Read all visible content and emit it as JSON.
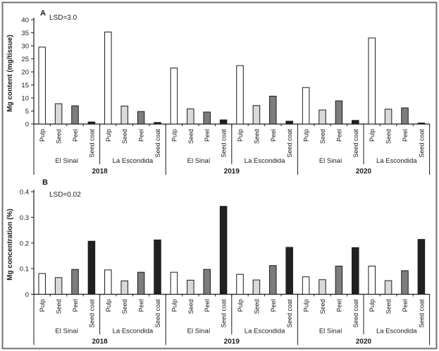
{
  "figure": {
    "background": "#ffffff",
    "frame_color": "#707070"
  },
  "chart_data": [
    {
      "id": "panel_a",
      "type": "bar",
      "panel_label": "A",
      "annotation": "LSD=3.0",
      "ylabel": "Mg content (mg/tissue)",
      "ylim": [
        0,
        40
      ],
      "yticks": [
        0,
        5,
        10,
        15,
        20,
        25,
        30,
        35,
        40
      ],
      "ytick_labels": [
        "0",
        "5",
        "10",
        "15",
        "20",
        "25",
        "30",
        "35",
        "40"
      ],
      "categories": [
        "Pulp",
        "Seed",
        "Peel",
        "Seed coat"
      ],
      "bar_colors": [
        "#ffffff",
        "#d9d9d9",
        "#7d7d7d",
        "#212121"
      ],
      "bar_edge_color": "#1a1a1a",
      "grid": false,
      "legend": "none",
      "years": [
        "2018",
        "2019",
        "2020"
      ],
      "groups": [
        {
          "year": "2018",
          "location": "El Sinaí",
          "values": [
            29.5,
            7.8,
            7.0,
            0.8
          ]
        },
        {
          "year": "2018",
          "location": "La Escondida",
          "values": [
            35.3,
            6.9,
            4.8,
            0.6
          ]
        },
        {
          "year": "2019",
          "location": "El Sinaí",
          "values": [
            21.5,
            5.8,
            4.6,
            1.6
          ]
        },
        {
          "year": "2019",
          "location": "La Escondida",
          "values": [
            22.4,
            7.1,
            10.7,
            1.1
          ]
        },
        {
          "year": "2020",
          "location": "El Sinaí",
          "values": [
            14.0,
            5.4,
            8.9,
            1.4
          ]
        },
        {
          "year": "2020",
          "location": "La Escondida",
          "values": [
            33.0,
            5.7,
            6.2,
            0.4
          ]
        }
      ]
    },
    {
      "id": "panel_b",
      "type": "bar",
      "panel_label": "B",
      "annotation": "LSD=0.02",
      "ylabel": "Mg concentration (%)",
      "ylim": [
        0,
        0.4
      ],
      "yticks": [
        0,
        0.1,
        0.2,
        0.3,
        0.4
      ],
      "ytick_labels": [
        "0",
        "0.1",
        "0.2",
        "0.3",
        "0.4"
      ],
      "categories": [
        "Pulp",
        "Seed",
        "Peel",
        "Seed coat"
      ],
      "bar_colors": [
        "#ffffff",
        "#d9d9d9",
        "#7d7d7d",
        "#212121"
      ],
      "bar_edge_color": "#1a1a1a",
      "grid": false,
      "legend": "none",
      "years": [
        "2018",
        "2019",
        "2020"
      ],
      "groups": [
        {
          "year": "2018",
          "location": "El Sinaí",
          "values": [
            0.081,
            0.065,
            0.097,
            0.207
          ]
        },
        {
          "year": "2018",
          "location": "La Escondida",
          "values": [
            0.095,
            0.052,
            0.086,
            0.212
          ]
        },
        {
          "year": "2019",
          "location": "El Sinaí",
          "values": [
            0.086,
            0.055,
            0.097,
            0.343
          ]
        },
        {
          "year": "2019",
          "location": "La Escondida",
          "values": [
            0.078,
            0.056,
            0.112,
            0.183
          ]
        },
        {
          "year": "2020",
          "location": "El Sinaí",
          "values": [
            0.068,
            0.057,
            0.11,
            0.182
          ]
        },
        {
          "year": "2020",
          "location": "La Escondida",
          "values": [
            0.11,
            0.053,
            0.092,
            0.214
          ]
        }
      ]
    }
  ]
}
